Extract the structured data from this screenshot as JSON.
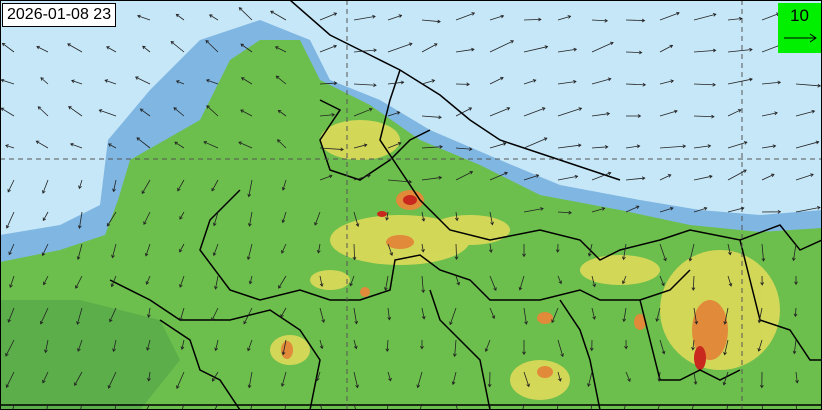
{
  "map": {
    "timestamp": "2026-01-08 23",
    "wind_legend": {
      "value": "10",
      "color": "#00f000"
    },
    "colors": {
      "sea_or_clean": "#c6e7f8",
      "low": "#5ba3d6",
      "moderate": "#6cbf4c",
      "elevated": "#e6dc5a",
      "high": "#e08a3a",
      "very_high": "#c8281e"
    },
    "gridlines": "dashed"
  }
}
